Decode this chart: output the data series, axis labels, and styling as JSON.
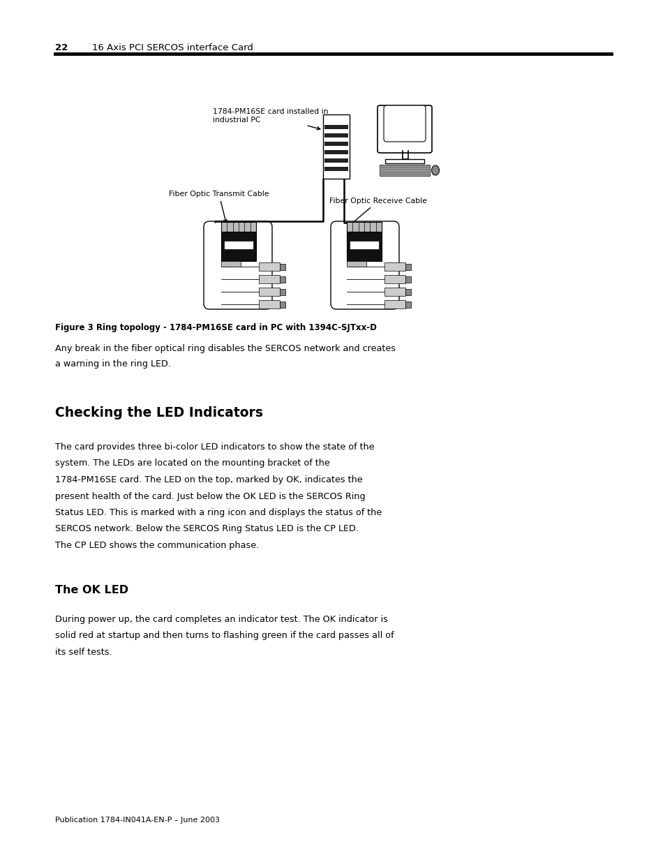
{
  "page_number": "22",
  "header_text": "16 Axis PCI SERCOS interface Card",
  "background_color": "#ffffff",
  "text_color": "#000000",
  "label_pc": "1784-PM16SE card installed in\nindustrial PC",
  "label_transmit": "Fiber Optic Transmit Cable",
  "label_receive": "Fiber Optic Receive Cable",
  "figure_caption_bold": "Figure 3 Ring topology - 1784-PM16SE card in PC with 1394C-SJTxx-D",
  "para1_lines": [
    "Any break in the fiber optical ring disables the SERCOS network and creates",
    "a warning in the ring LED."
  ],
  "section_title": "Checking the LED Indicators",
  "section_body_lines": [
    "The card provides three bi-color LED indicators to show the state of the",
    "system. The LEDs are located on the mounting bracket of the",
    "1784-PM16SE card. The LED on the top, marked by OK, indicates the",
    "present health of the card. Just below the OK LED is the SERCOS Ring",
    "Status LED. This is marked with a ring icon and displays the status of the",
    "SERCOS network. Below the SERCOS Ring Status LED is the CP LED.",
    "The CP LED shows the communication phase."
  ],
  "subsection_title": "The OK LED",
  "subsection_body_lines": [
    "During power up, the card completes an indicator test. The OK indicator is",
    "solid red at startup and then turns to flashing green if the card passes all of",
    "its self tests."
  ],
  "footer_text": "Publication 1784-IN041A-EN-P – June 2003"
}
